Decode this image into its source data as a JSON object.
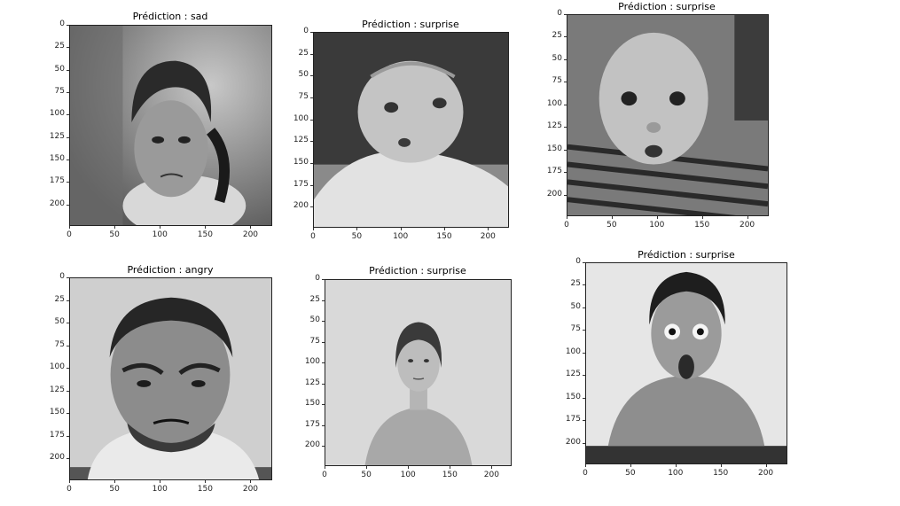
{
  "panels": [
    {
      "title": "Prédiction : sad",
      "y_ticks": [
        "0",
        "25",
        "50",
        "75",
        "100",
        "125",
        "150",
        "175",
        "200"
      ],
      "x_ticks": [
        "0",
        "50",
        "100",
        "150",
        "200"
      ],
      "scene": "sad-child"
    },
    {
      "title": "Prédiction : surprise",
      "y_ticks": [
        "0",
        "25",
        "50",
        "75",
        "100",
        "125",
        "150",
        "175",
        "200"
      ],
      "x_ticks": [
        "0",
        "50",
        "100",
        "150",
        "200"
      ],
      "scene": "surprised-baby-crawling"
    },
    {
      "title": "Prédiction : surprise",
      "y_ticks": [
        "0",
        "25",
        "50",
        "75",
        "100",
        "125",
        "150",
        "175",
        "200"
      ],
      "x_ticks": [
        "0",
        "50",
        "100",
        "150",
        "200"
      ],
      "scene": "surprised-baby-striped"
    },
    {
      "title": "Prédiction : angry",
      "y_ticks": [
        "0",
        "25",
        "50",
        "75",
        "100",
        "125",
        "150",
        "175",
        "200"
      ],
      "x_ticks": [
        "0",
        "50",
        "100",
        "150",
        "200"
      ],
      "scene": "angry-man"
    },
    {
      "title": "Prédiction : surprise",
      "y_ticks": [
        "0",
        "25",
        "50",
        "75",
        "100",
        "125",
        "150",
        "175",
        "200"
      ],
      "x_ticks": [
        "0",
        "50",
        "100",
        "150",
        "200"
      ],
      "scene": "neutral-woman"
    },
    {
      "title": "Prédiction : surprise",
      "y_ticks": [
        "0",
        "25",
        "50",
        "75",
        "100",
        "125",
        "150",
        "175",
        "200"
      ],
      "x_ticks": [
        "0",
        "50",
        "100",
        "150",
        "200"
      ],
      "scene": "surprised-man"
    }
  ]
}
